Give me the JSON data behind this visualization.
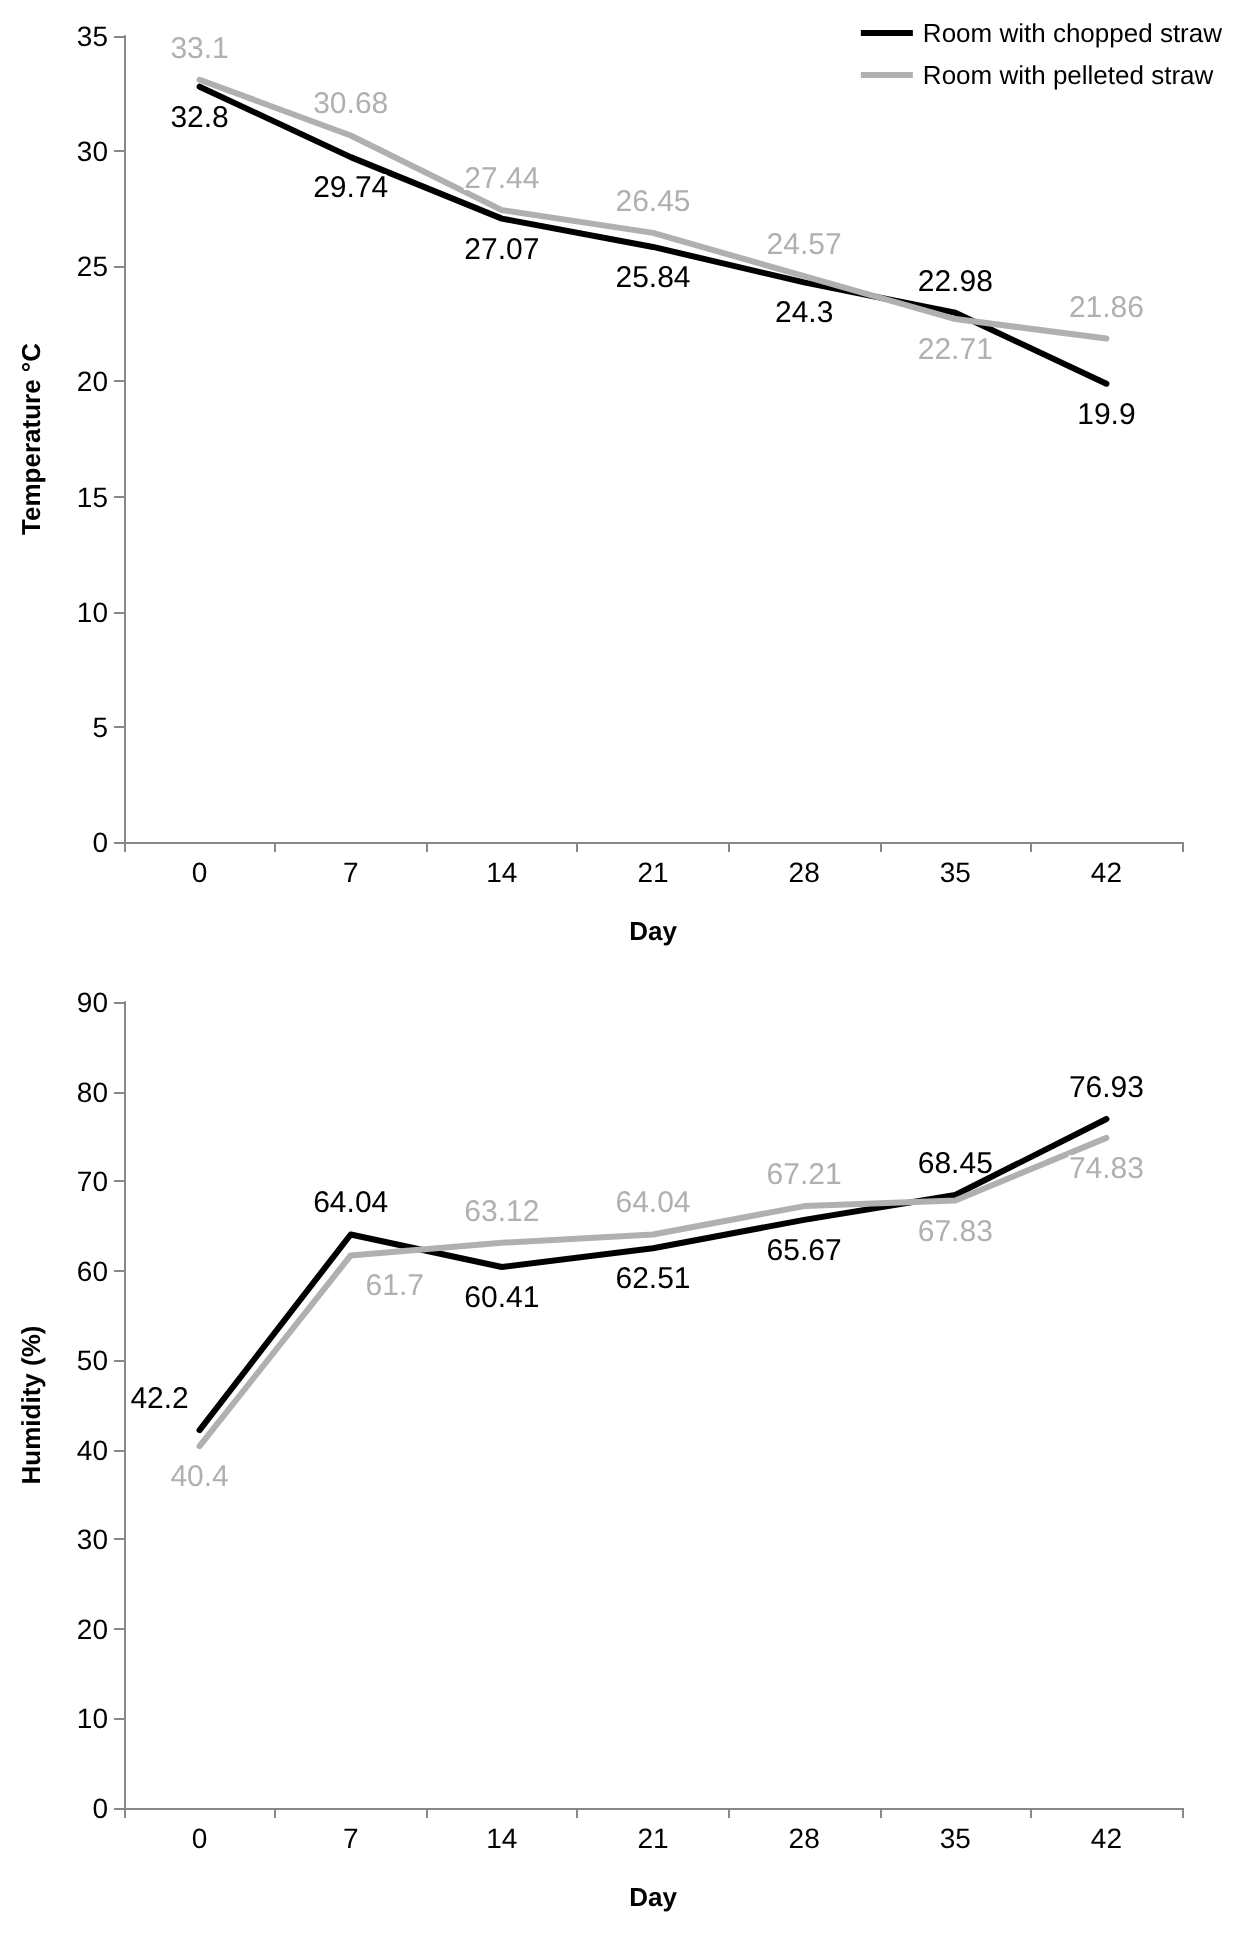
{
  "chart_data": [
    {
      "type": "line",
      "xlabel": "Day",
      "ylabel": "Temperature °C",
      "categories": [
        "0",
        "7",
        "14",
        "21",
        "28",
        "35",
        "42"
      ],
      "ylim": [
        0,
        35
      ],
      "yticks": [
        0,
        5,
        10,
        15,
        20,
        25,
        30,
        35
      ],
      "grid": false,
      "legend": "top right",
      "marker": "none",
      "line_style": "solid",
      "data_labels": true,
      "series": [
        {
          "name": "Room with chopped straw",
          "color": "#000000",
          "values": [
            32.8,
            29.74,
            27.07,
            25.84,
            24.3,
            22.98,
            19.9
          ]
        },
        {
          "name": "Room with pelleted straw",
          "color": "#b0b0b0",
          "values": [
            33.1,
            30.68,
            27.44,
            26.45,
            24.57,
            22.71,
            21.86
          ]
        }
      ]
    },
    {
      "type": "line",
      "xlabel": "Day",
      "ylabel": "Humidity (%)",
      "categories": [
        "0",
        "7",
        "14",
        "21",
        "28",
        "35",
        "42"
      ],
      "ylim": [
        0,
        90
      ],
      "yticks": [
        0,
        10,
        20,
        30,
        40,
        50,
        60,
        70,
        80,
        90
      ],
      "grid": false,
      "marker": "none",
      "line_style": "solid",
      "data_labels": true,
      "series": [
        {
          "color": "#000000",
          "values": [
            42.2,
            64.04,
            60.41,
            62.51,
            65.67,
            68.45,
            76.93
          ]
        },
        {
          "color": "#b0b0b0",
          "values": [
            40.4,
            61.7,
            63.12,
            64.04,
            67.21,
            67.83,
            74.83
          ]
        }
      ]
    }
  ]
}
